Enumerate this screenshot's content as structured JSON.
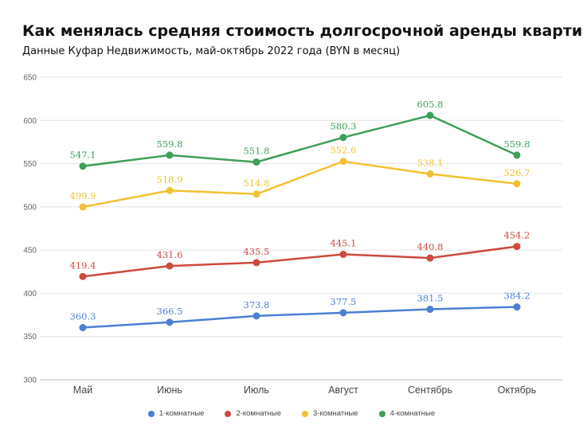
{
  "header": {
    "title": "Как менялась средняя стоимость долгосрочной аренды квартир?",
    "subtitle": "Данные Куфар Недвижимость, май-октябрь 2022 года (BYN в месяц)"
  },
  "chart_data": {
    "type": "line",
    "categories": [
      "Май",
      "Июнь",
      "Июль",
      "Август",
      "Сентябрь",
      "Октябрь"
    ],
    "ylim": [
      300,
      650
    ],
    "yticks": [
      300,
      350,
      400,
      450,
      500,
      550,
      600,
      650
    ],
    "grid": true,
    "legend_position": "bottom",
    "series": [
      {
        "name": "1-комнатные",
        "color": "#4a7fd4",
        "values": [
          360.3,
          366.5,
          373.8,
          377.5,
          381.5,
          384.2
        ]
      },
      {
        "name": "2-комнатные",
        "color": "#cc4a3f",
        "values": [
          419.4,
          431.6,
          435.5,
          445.1,
          440.8,
          454.2
        ]
      },
      {
        "name": "3-комнатные",
        "color": "#f1c232",
        "values": [
          499.9,
          518.9,
          514.8,
          552.6,
          538.1,
          526.7
        ]
      },
      {
        "name": "4-комнатные",
        "color": "#3e9f58",
        "values": [
          547.1,
          559.8,
          551.8,
          580.3,
          605.8,
          559.8
        ]
      }
    ]
  }
}
